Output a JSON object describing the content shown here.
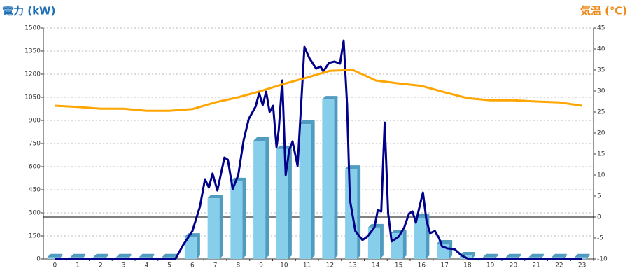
{
  "chart_data": {
    "type": "bar",
    "y_label": "電力 (kW)",
    "y_label_color": "#1f6fb5",
    "y2_label": "気温 (℃)",
    "y2_label_color": "#ee8a1a",
    "categories": [
      0,
      1,
      2,
      3,
      4,
      5,
      6,
      7,
      8,
      9,
      10,
      11,
      12,
      13,
      14,
      15,
      16,
      17,
      18,
      19,
      20,
      21,
      22,
      23
    ],
    "ylim": [
      0,
      1500
    ],
    "yticks": [
      0,
      150,
      300,
      450,
      600,
      750,
      900,
      1050,
      1200,
      1350,
      1500
    ],
    "y2lim": [
      -10,
      45
    ],
    "y2ticks": [
      -10,
      -5,
      0,
      5,
      10,
      15,
      20,
      25,
      30,
      35,
      40,
      45
    ],
    "grid": true,
    "series": [
      {
        "type": "bar",
        "color": "#87ceeb",
        "side_color": "#4f9cc0",
        "values": [
          10,
          10,
          10,
          10,
          10,
          10,
          145,
          395,
          505,
          768,
          714,
          877,
          1036,
          586,
          205,
          168,
          268,
          100,
          23,
          10,
          10,
          10,
          10,
          10
        ]
      },
      {
        "type": "line",
        "color": "#00008b",
        "x": [
          0,
          5.26,
          5.6,
          6.0,
          6.33,
          6.55,
          6.72,
          6.88,
          7.09,
          7.4,
          7.55,
          7.76,
          8.0,
          8.24,
          8.46,
          8.76,
          8.91,
          9.07,
          9.22,
          9.37,
          9.52,
          9.67,
          9.77,
          9.92,
          10.07,
          10.22,
          10.37,
          10.59,
          10.89,
          11.1,
          11.4,
          11.59,
          11.71,
          11.96,
          12.2,
          12.44,
          12.6,
          12.75,
          12.87,
          13.11,
          13.42,
          13.63,
          13.94,
          14.09,
          14.24,
          14.39,
          14.54,
          14.69,
          15.0,
          15.24,
          15.45,
          15.6,
          15.75,
          15.91,
          16.06,
          16.21,
          16.37,
          16.58,
          16.76,
          16.89,
          17.13,
          17.43,
          17.74,
          18.04,
          23
        ],
        "values": [
          0,
          0,
          91,
          182,
          341,
          518,
          464,
          555,
          445,
          659,
          645,
          455,
          545,
          773,
          909,
          991,
          1077,
          1000,
          1086,
          955,
          995,
          727,
          841,
          1159,
          545,
          705,
          764,
          605,
          1377,
          1305,
          1236,
          1250,
          1218,
          1273,
          1282,
          1268,
          1418,
          1000,
          386,
          182,
          123,
          145,
          205,
          318,
          309,
          886,
          295,
          114,
          145,
          205,
          295,
          309,
          236,
          341,
          432,
          250,
          168,
          182,
          136,
          82,
          68,
          64,
          23,
          0,
          0
        ]
      },
      {
        "type": "line",
        "color": "#ffa500",
        "axis": "y2",
        "values": [
          26.5,
          26.2,
          25.8,
          25.8,
          25.3,
          25.3,
          25.7,
          27.3,
          28.5,
          30,
          31.7,
          33.2,
          34.8,
          35,
          32.5,
          31.8,
          31.2,
          29.7,
          28.3,
          27.8,
          27.8,
          27.5,
          27.3,
          26.5
        ]
      }
    ]
  }
}
